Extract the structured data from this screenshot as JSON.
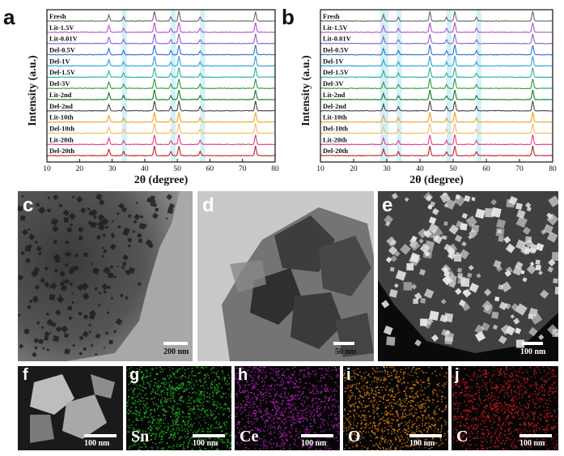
{
  "panels": {
    "a": "a",
    "b": "b",
    "c": "c",
    "d": "d",
    "e": "e",
    "f": "f",
    "g": "g",
    "h": "h",
    "i": "i",
    "j": "j"
  },
  "chart_data": [
    {
      "type": "line",
      "panel": "a",
      "xlabel": "2θ (degree)",
      "ylabel": "Intensity (a.u.)",
      "xlim": [
        10,
        80
      ],
      "xticks": [
        10,
        20,
        30,
        40,
        50,
        60,
        70,
        80
      ],
      "peaks": [
        29,
        33.5,
        43,
        48,
        50.5,
        57,
        74
      ],
      "highlight_bands": [
        [
          33,
          34.5
        ],
        [
          48,
          49.5
        ],
        [
          57,
          58.5
        ]
      ],
      "series": [
        {
          "name": "Fresh",
          "color": "#666666"
        },
        {
          "name": "Lit-1.5V",
          "color": "#b84fd0"
        },
        {
          "name": "Lit-0.01V",
          "color": "#8a5fd2"
        },
        {
          "name": "Del-0.5V",
          "color": "#2f6fd0"
        },
        {
          "name": "Del-1V",
          "color": "#28a0d8"
        },
        {
          "name": "Del-1.5V",
          "color": "#1fb39a"
        },
        {
          "name": "Del-3V",
          "color": "#2e9a3a"
        },
        {
          "name": "Lit-2nd",
          "color": "#0a7a2a"
        },
        {
          "name": "Del-2nd",
          "color": "#444444"
        },
        {
          "name": "Lit-10th",
          "color": "#f0a020"
        },
        {
          "name": "Del-10th",
          "color": "#f5b860"
        },
        {
          "name": "Lit-20th",
          "color": "#e04080"
        },
        {
          "name": "Del-20th",
          "color": "#c02020"
        }
      ]
    },
    {
      "type": "line",
      "panel": "b",
      "xlabel": "2θ (degree)",
      "ylabel": "Intensity (a.u.)",
      "xlim": [
        10,
        80
      ],
      "xticks": [
        10,
        20,
        30,
        40,
        50,
        60,
        70,
        80
      ],
      "peaks": [
        29,
        33.5,
        43,
        48,
        50.5,
        57,
        74
      ],
      "highlight_bands": [
        [
          28,
          30.5
        ],
        [
          33,
          34.5
        ],
        [
          48,
          49.5
        ],
        [
          57,
          58.5
        ]
      ],
      "series": [
        {
          "name": "Fresh",
          "color": "#666666"
        },
        {
          "name": "Lit-1.5V",
          "color": "#b84fd0"
        },
        {
          "name": "Lit-0.01V",
          "color": "#8a5fd2"
        },
        {
          "name": "Del-0.5V",
          "color": "#2f6fd0"
        },
        {
          "name": "Del-1V",
          "color": "#28a0d8"
        },
        {
          "name": "Del-1.5V",
          "color": "#1fb39a"
        },
        {
          "name": "Del-3V",
          "color": "#2e9a3a"
        },
        {
          "name": "Lit-2nd",
          "color": "#0a7a2a"
        },
        {
          "name": "Del-2nd",
          "color": "#444444"
        },
        {
          "name": "Lit-10th",
          "color": "#f0a020"
        },
        {
          "name": "Del-10th",
          "color": "#f5b860"
        },
        {
          "name": "Lit-20th",
          "color": "#e04080"
        },
        {
          "name": "Del-20th",
          "color": "#c02020"
        }
      ]
    }
  ],
  "scalebars": {
    "c": "200 nm",
    "d": "50 nm",
    "e": "100 nm",
    "f": "100 nm",
    "g": "100 nm",
    "h": "100 nm",
    "i": "100 nm",
    "j": "100 nm"
  },
  "elements": {
    "g": "Sn",
    "h": "Ce",
    "i": "O",
    "j": "C"
  },
  "colors": {
    "highlight": "#bfe9f5",
    "map_sn": "#1fb81f",
    "map_ce": "#b01fb8",
    "map_o": "#d87a12",
    "map_c": "#d41a1a"
  }
}
